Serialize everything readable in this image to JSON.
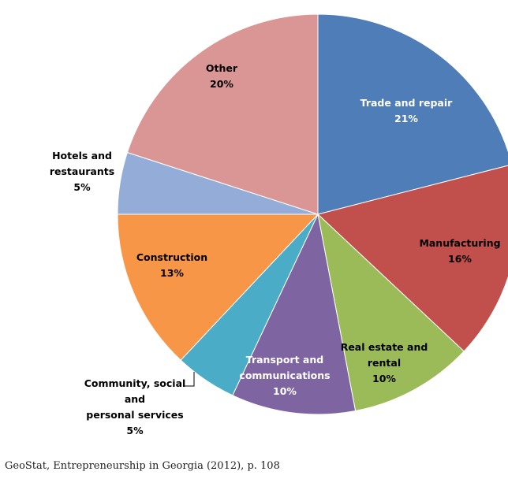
{
  "chart_data": {
    "type": "pie",
    "slices": [
      {
        "label": [
          "Trade and repair",
          "21%"
        ],
        "value": 21,
        "color": "#4f7db7",
        "text_color": "#ffffff"
      },
      {
        "label": [
          "Manufacturing",
          "16%"
        ],
        "value": 16,
        "color": "#c14f4c",
        "text_color": "#000000"
      },
      {
        "label": [
          "Real estate and",
          "rental",
          "10%"
        ],
        "value": 10,
        "color": "#9bbb59",
        "text_color": "#000000"
      },
      {
        "label": [
          "Transport and",
          "communications",
          "10%"
        ],
        "value": 10,
        "color": "#7f64a2",
        "text_color": "#ffffff"
      },
      {
        "label": [
          "Community, social",
          "and",
          "personal services",
          "5%"
        ],
        "value": 5,
        "color": "#4aacc6",
        "text_color": "#000000"
      },
      {
        "label": [
          "Construction",
          "13%"
        ],
        "value": 13,
        "color": "#f79646",
        "text_color": "#000000"
      },
      {
        "label": [
          "Hotels and",
          "restaurants",
          "5%"
        ],
        "value": 5,
        "color": "#94add8",
        "text_color": "#000000"
      },
      {
        "label": [
          "Other",
          "20%"
        ],
        "value": 20,
        "color": "#d99694",
        "text_color": "#000000"
      }
    ]
  },
  "source": "GeoStat, Entrepreneurship in Georgia (2012), p. 108"
}
